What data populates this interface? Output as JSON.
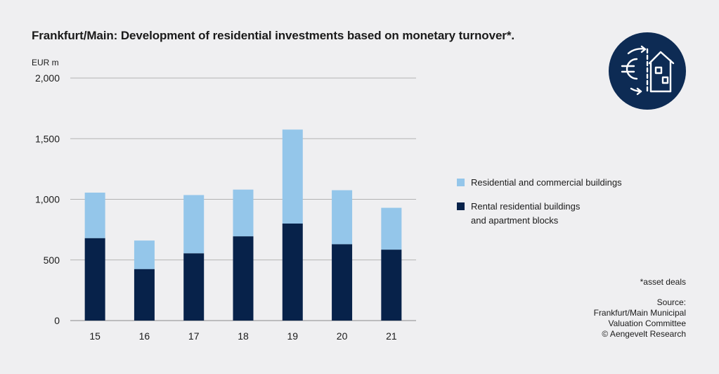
{
  "title": "Frankfurt/Main: Development of residential investments based on monetary turnover*.",
  "colors": {
    "light": "#94c6ea",
    "dark": "#07224a",
    "grid": "#b3b3b3",
    "logo_bg": "#0d2b54"
  },
  "logo": {
    "icon": "euro-house-exchange-icon"
  },
  "legend": [
    {
      "label": "Residential and commercial buildings",
      "color": "#94c6ea"
    },
    {
      "label": "Rental residential buildings and apartment blocks",
      "color": "#07224a"
    }
  ],
  "footnote": "*asset deals",
  "source": {
    "label": "Source:",
    "lines": [
      "Frankfurt/Main Municipal",
      "Valuation Committee",
      "© Aengevelt Research"
    ]
  },
  "chart_data": {
    "type": "bar",
    "stacked": true,
    "ylabel": "EUR m",
    "ylim": [
      0,
      2000
    ],
    "yticks": [
      0,
      500,
      1000,
      1500,
      2000
    ],
    "ytick_labels": [
      "0",
      "500",
      "1,000",
      "1,500",
      "2,000"
    ],
    "categories": [
      "15",
      "16",
      "17",
      "18",
      "19",
      "20",
      "21"
    ],
    "series": [
      {
        "name": "Rental residential buildings and apartment blocks",
        "color": "#07224a",
        "values": [
          680,
          425,
          555,
          695,
          800,
          630,
          585
        ]
      },
      {
        "name": "Residential and commercial buildings",
        "color": "#94c6ea",
        "values": [
          375,
          235,
          480,
          385,
          775,
          445,
          345
        ]
      }
    ],
    "grid": true,
    "legend_position": "right"
  }
}
